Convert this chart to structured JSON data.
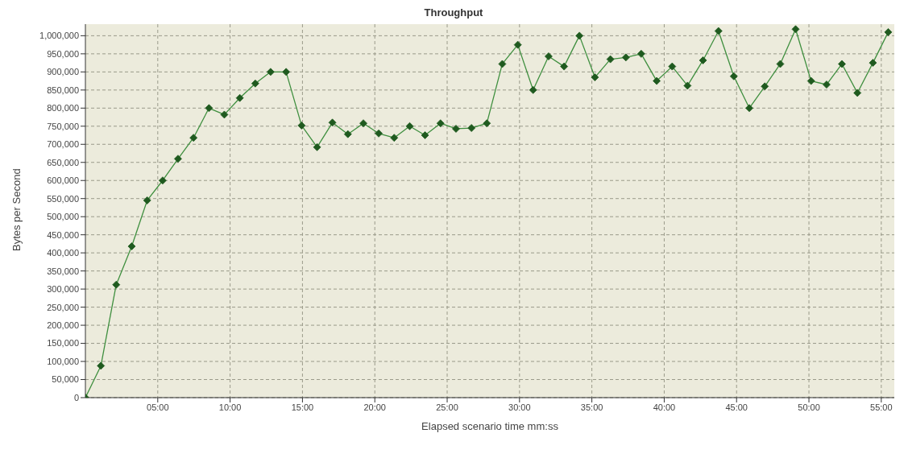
{
  "chart_data": {
    "type": "line",
    "title": "Throughput",
    "xlabel": "Elapsed scenario time mm:ss",
    "ylabel": "Bytes per Second",
    "x": [
      0,
      1.07,
      2.13,
      3.2,
      4.27,
      5.34,
      6.4,
      7.47,
      8.54,
      9.6,
      10.67,
      11.74,
      12.8,
      13.87,
      14.94,
      16.01,
      17.07,
      18.14,
      19.21,
      20.27,
      21.34,
      22.41,
      23.47,
      24.54,
      25.61,
      26.68,
      27.74,
      28.81,
      29.88,
      30.94,
      32.01,
      33.08,
      34.14,
      35.21,
      36.28,
      37.35,
      38.41,
      39.48,
      40.55,
      41.61,
      42.68,
      43.75,
      44.81,
      45.88,
      46.95,
      48.02,
      49.08,
      50.15,
      51.22,
      52.28,
      53.35,
      54.42,
      55.48
    ],
    "series": [
      {
        "color": "#3f8f3f",
        "values": [
          0,
          88000,
          312000,
          418000,
          545000,
          600000,
          660000,
          718000,
          800000,
          782000,
          828000,
          868000,
          900000,
          900000,
          752000,
          692000,
          760000,
          728000,
          758000,
          730000,
          718000,
          750000,
          725000,
          758000,
          743000,
          745000,
          758000,
          922000,
          975000,
          850000,
          943000,
          915000,
          1000000,
          885000,
          935000,
          940000,
          950000,
          875000,
          915000,
          862000,
          932000,
          1013000,
          888000,
          800000,
          860000,
          922000,
          1018000,
          875000,
          865000,
          922000,
          842000,
          925000,
          1010000
        ]
      }
    ],
    "xlim": [
      0,
      55.9
    ],
    "xticks": [
      {
        "value": 5,
        "label": "05:00"
      },
      {
        "value": 10,
        "label": "10:00"
      },
      {
        "value": 15,
        "label": "15:00"
      },
      {
        "value": 20,
        "label": "20:00"
      },
      {
        "value": 25,
        "label": "25:00"
      },
      {
        "value": 30,
        "label": "30:00"
      },
      {
        "value": 35,
        "label": "35:00"
      },
      {
        "value": 40,
        "label": "40:00"
      },
      {
        "value": 45,
        "label": "45:00"
      },
      {
        "value": 50,
        "label": "50:00"
      },
      {
        "value": 55,
        "label": "55:00"
      }
    ],
    "ylim": [
      0,
      1032000
    ],
    "yticks": [
      {
        "value": 0,
        "label": "0"
      },
      {
        "value": 50000,
        "label": "50,000"
      },
      {
        "value": 100000,
        "label": "100,000"
      },
      {
        "value": 150000,
        "label": "150,000"
      },
      {
        "value": 200000,
        "label": "200,000"
      },
      {
        "value": 250000,
        "label": "250,000"
      },
      {
        "value": 300000,
        "label": "300,000"
      },
      {
        "value": 350000,
        "label": "350,000"
      },
      {
        "value": 400000,
        "label": "400,000"
      },
      {
        "value": 450000,
        "label": "450,000"
      },
      {
        "value": 500000,
        "label": "500,000"
      },
      {
        "value": 550000,
        "label": "550,000"
      },
      {
        "value": 600000,
        "label": "600,000"
      },
      {
        "value": 650000,
        "label": "650,000"
      },
      {
        "value": 700000,
        "label": "700,000"
      },
      {
        "value": 750000,
        "label": "750,000"
      },
      {
        "value": 800000,
        "label": "800,000"
      },
      {
        "value": 850000,
        "label": "850,000"
      },
      {
        "value": 900000,
        "label": "900,000"
      },
      {
        "value": 950000,
        "label": "950,000"
      },
      {
        "value": 1000000,
        "label": "1,000,000"
      }
    ],
    "grid": true,
    "marker": "diamond",
    "line_style": "solid"
  }
}
